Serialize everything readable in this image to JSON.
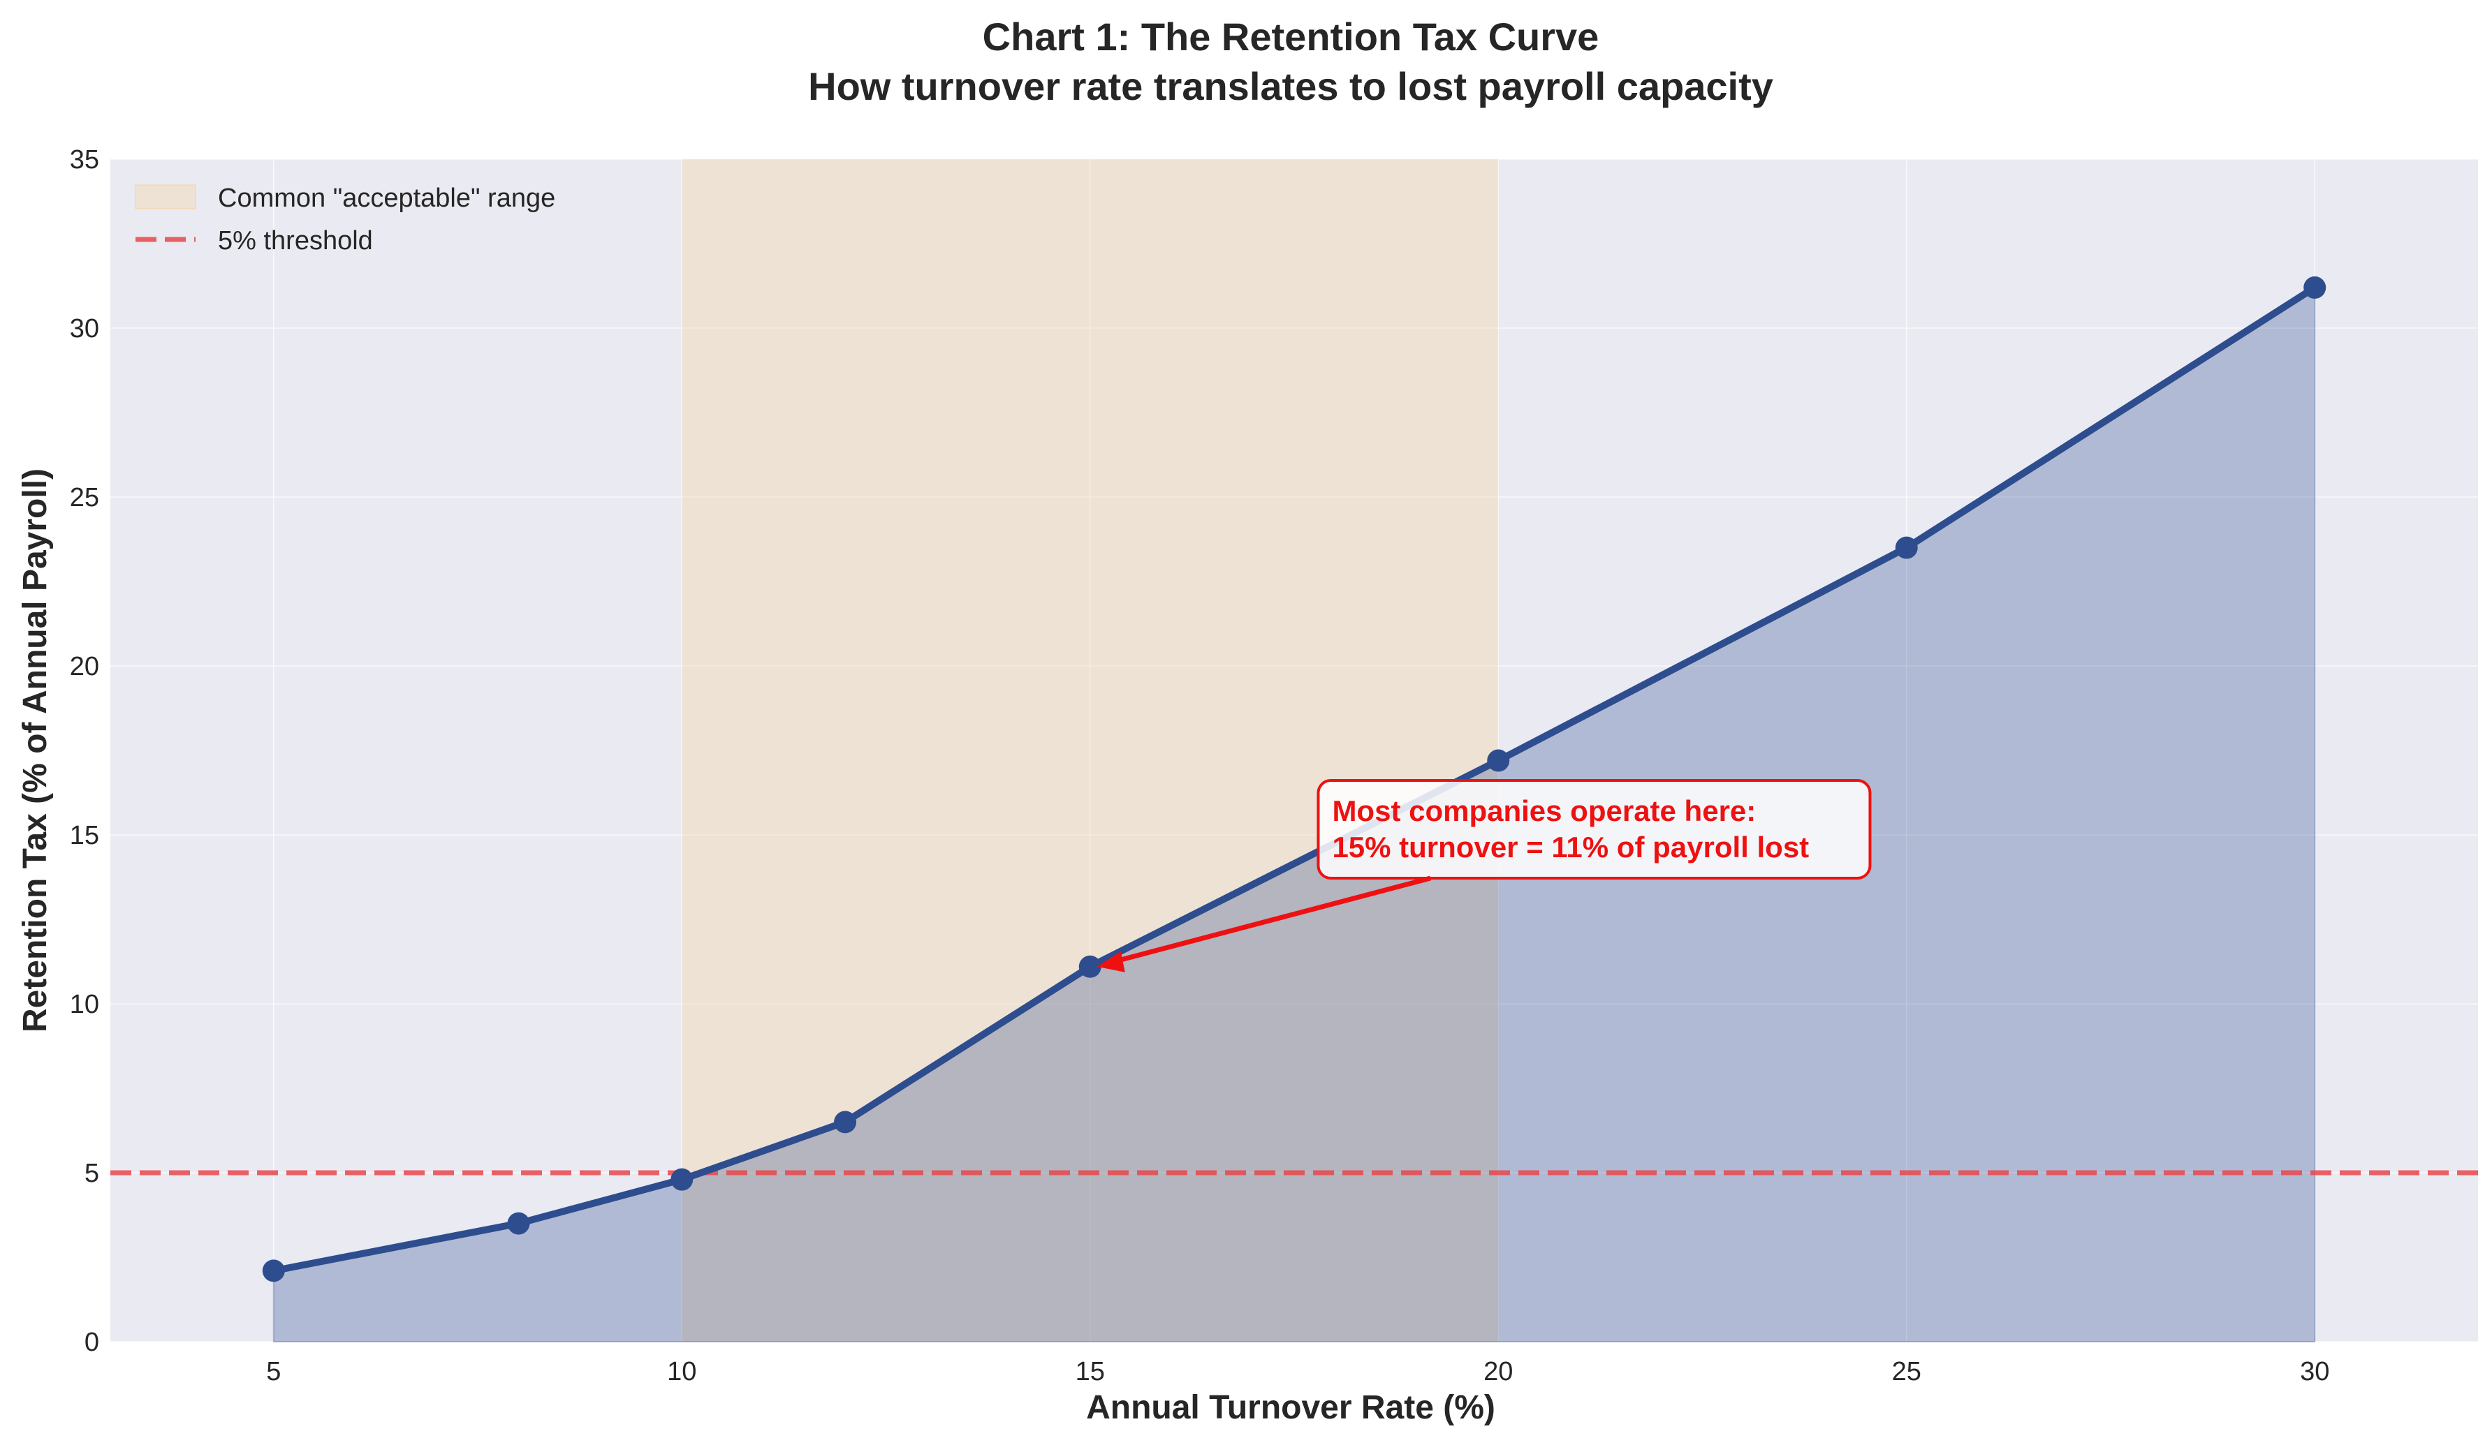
{
  "chart_data": {
    "type": "line",
    "title": "Chart 1: The Retention Tax Curve",
    "subtitle": "How turnover rate translates to lost payroll capacity",
    "xlabel": "Annual Turnover Rate (%)",
    "ylabel": "Retention Tax (% of Annual Payroll)",
    "xlim": [
      3,
      32
    ],
    "ylim": [
      0,
      35
    ],
    "x_ticks": [
      5,
      10,
      15,
      20,
      25,
      30
    ],
    "y_ticks": [
      0,
      5,
      10,
      15,
      20,
      25,
      30,
      35
    ],
    "grid": true,
    "legend_position": "top-left",
    "series": [
      {
        "x": [
          5,
          8,
          10,
          12,
          15,
          20,
          25,
          30
        ],
        "values": [
          2.1,
          3.5,
          4.8,
          6.5,
          11.1,
          17.2,
          23.5,
          31.2
        ],
        "color": "#2e4d8e",
        "area_fill": true
      }
    ],
    "shaded_range": {
      "label": "Common \"acceptable\" range",
      "x_start": 10,
      "x_end": 20,
      "color": "#f5d6a8"
    },
    "threshold": {
      "label": "5% threshold",
      "y": 5,
      "color": "#e8474a",
      "style": "dashed"
    },
    "annotation": {
      "lines": [
        "Most companies operate here:",
        "15% turnover = 11% of payroll lost"
      ],
      "point_x": 15,
      "point_y": 11.1,
      "text_x": 18,
      "text_y": 15,
      "color": "#ee1111"
    }
  }
}
